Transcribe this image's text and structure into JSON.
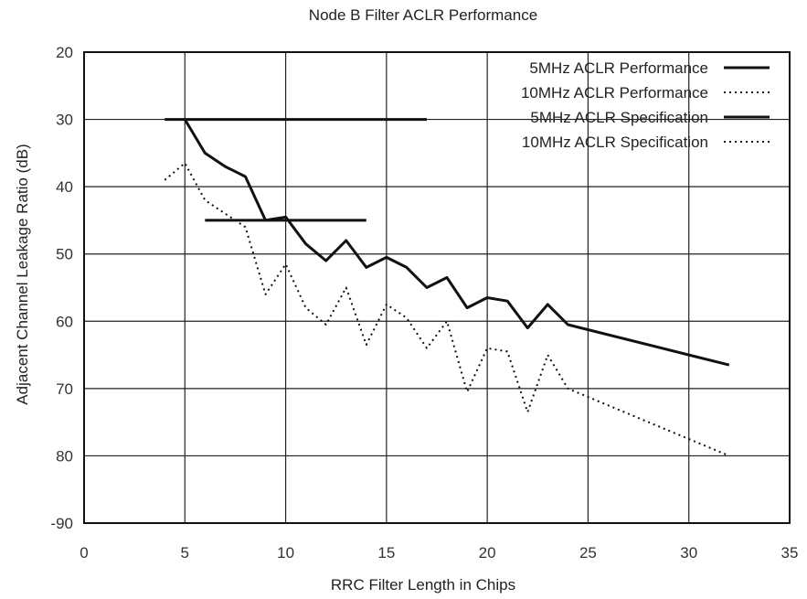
{
  "chart_data": {
    "type": "line",
    "title": "Node B Filter ACLR Performance",
    "xlabel": "RRC Filter Length in Chips",
    "ylabel": "Adjacent Channel Leakage Ratio (dB)",
    "xlim": [
      0,
      35
    ],
    "ylim": [
      -90,
      -20
    ],
    "xticks": [
      0,
      5,
      10,
      15,
      20,
      25,
      30,
      35
    ],
    "yticks": [
      -20,
      -30,
      -40,
      -50,
      -60,
      -70,
      -80,
      -90
    ],
    "ytick_labels": [
      "20",
      "30",
      "40",
      "50",
      "60",
      "70",
      "80",
      "-90"
    ],
    "grid": true,
    "legend_position": "top-right",
    "series": [
      {
        "name": "5MHz ACLR Performance",
        "style": "solid",
        "x": [
          5,
          6,
          7,
          8,
          9,
          10,
          11,
          12,
          13,
          14,
          15,
          16,
          17,
          18,
          19,
          20,
          21,
          22,
          23,
          24,
          32
        ],
        "y": [
          -30,
          -35,
          -37,
          -38.5,
          -45,
          -44.5,
          -48.5,
          -51,
          -48,
          -52,
          -50.5,
          -52,
          -55,
          -53.5,
          -58,
          -56.5,
          -57,
          -61,
          -57.5,
          -60.5,
          -66.5
        ]
      },
      {
        "name": "10MHz ACLR Performance",
        "style": "dotted",
        "x": [
          4,
          5,
          6,
          7,
          8,
          9,
          10,
          11,
          12,
          13,
          14,
          15,
          16,
          17,
          18,
          19,
          20,
          21,
          22,
          23,
          24,
          32
        ],
        "y": [
          -39,
          -36.5,
          -42,
          -44,
          -46,
          -56,
          -51.5,
          -58,
          -60.5,
          -55,
          -63.5,
          -57.5,
          -59.5,
          -64,
          -60,
          -70.5,
          -64,
          -64.5,
          -73.5,
          -65,
          -70,
          -80
        ]
      },
      {
        "name": "5MHz ACLR Specification",
        "style": "solid",
        "x": [
          4,
          17
        ],
        "y": [
          -30,
          -30
        ]
      },
      {
        "name": "10MHz ACLR Specification",
        "style": "solid",
        "x": [
          6,
          14
        ],
        "y": [
          -45,
          -45
        ]
      }
    ]
  }
}
